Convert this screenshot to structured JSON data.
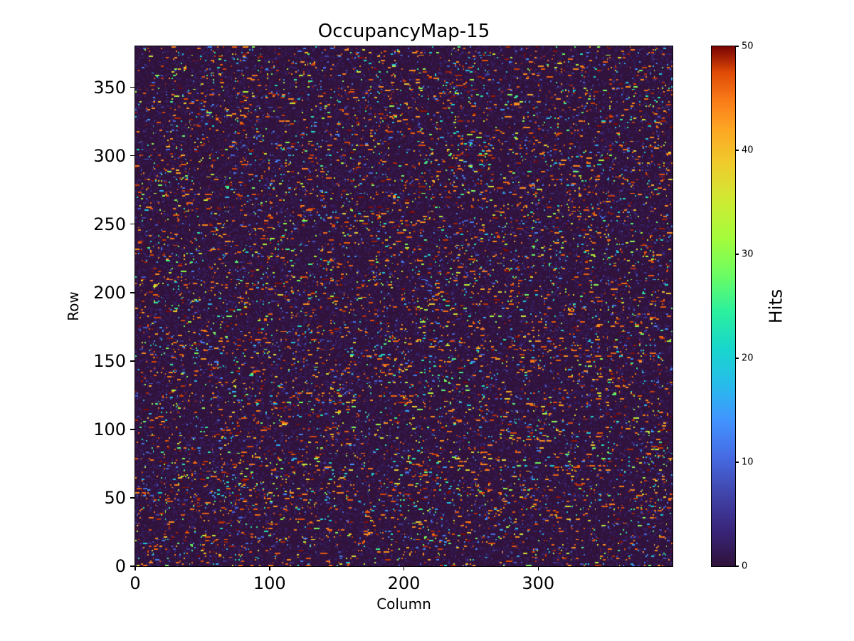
{
  "colors": {
    "background": "#ffffff",
    "axis": "#000000"
  },
  "chart_data": {
    "type": "heatmap",
    "title": "OccupancyMap-15",
    "xlabel": "Column",
    "ylabel": "Row",
    "colorbar_label": "Hits",
    "x_range": [
      0,
      400
    ],
    "y_range": [
      0,
      380
    ],
    "value_range": [
      0,
      50
    ],
    "x_ticks": [
      0,
      100,
      200,
      300
    ],
    "y_ticks": [
      0,
      50,
      100,
      150,
      200,
      250,
      300,
      350
    ],
    "colorbar_ticks": [
      0,
      10,
      20,
      30,
      40,
      50
    ],
    "colormap": "turbo",
    "colormap_stops": [
      [
        0.0,
        "#30123b"
      ],
      [
        0.07,
        "#39267c"
      ],
      [
        0.14,
        "#4145ab"
      ],
      [
        0.21,
        "#466be3"
      ],
      [
        0.28,
        "#4294ff"
      ],
      [
        0.35,
        "#28bceb"
      ],
      [
        0.42,
        "#18d7cc"
      ],
      [
        0.49,
        "#2cf09e"
      ],
      [
        0.56,
        "#6cfd63"
      ],
      [
        0.63,
        "#a4fc3c"
      ],
      [
        0.7,
        "#cdec34"
      ],
      [
        0.77,
        "#eece2d"
      ],
      [
        0.84,
        "#fda824"
      ],
      [
        0.9,
        "#f97918"
      ],
      [
        0.95,
        "#e04b06"
      ],
      [
        1.0,
        "#7a0403"
      ]
    ],
    "description": "400x380 occupancy heatmap: mostly near-zero dark-purple background with dense sparse speckle of short horizontal runs of hits spanning 0-50; high values (dark red, 45-50) are the most frequent bright speckles, with scattered orange, yellow, green, cyan and blue runs.",
    "generation": {
      "seed": 15,
      "cols": 400,
      "rows": 380,
      "hit_probability": 0.055,
      "row_boost_probability": 0.2,
      "row_boost_factor": 1.6,
      "low_noise_probability": 0.25,
      "max_run_length": 4
    }
  }
}
